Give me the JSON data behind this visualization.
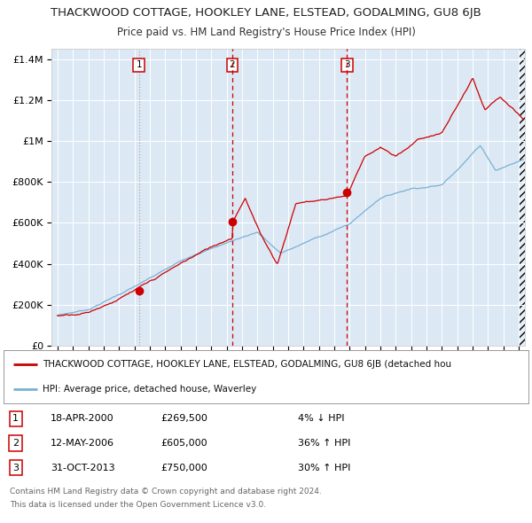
{
  "title": "THACKWOOD COTTAGE, HOOKLEY LANE, ELSTEAD, GODALMING, GU8 6JB",
  "subtitle": "Price paid vs. HM Land Registry's House Price Index (HPI)",
  "legend_red": "THACKWOOD COTTAGE, HOOKLEY LANE, ELSTEAD, GODALMING, GU8 6JB (detached hou",
  "legend_blue": "HPI: Average price, detached house, Waverley",
  "footer1": "Contains HM Land Registry data © Crown copyright and database right 2024.",
  "footer2": "This data is licensed under the Open Government Licence v3.0.",
  "sales": [
    {
      "num": 1,
      "date": "18-APR-2000",
      "price": "£269,500",
      "pct": "4%",
      "dir": "↓"
    },
    {
      "num": 2,
      "date": "12-MAY-2006",
      "price": "£605,000",
      "pct": "36%",
      "dir": "↑"
    },
    {
      "num": 3,
      "date": "31-OCT-2013",
      "price": "£750,000",
      "pct": "30%",
      "dir": "↑"
    }
  ],
  "sale_years": [
    2000.29,
    2006.36,
    2013.83
  ],
  "sale_prices": [
    269500,
    605000,
    750000
  ],
  "bg_color": "#dce9f5",
  "red_color": "#cc0000",
  "blue_color": "#7ab0d4",
  "ylim": [
    0,
    1450000
  ],
  "yticks": [
    0,
    200000,
    400000,
    600000,
    800000,
    1000000,
    1200000,
    1400000
  ],
  "xlim_start": 1994.6,
  "xlim_end": 2025.4,
  "xticks_start": 1995,
  "xticks_end": 2025
}
